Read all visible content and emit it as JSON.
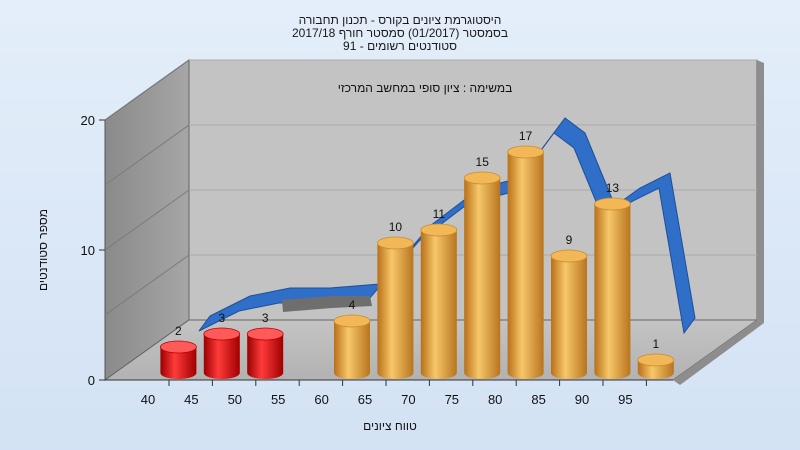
{
  "chart_data": {
    "type": "bar",
    "title_lines": [
      "היסטוגרמת ציונים בקורס - תכנון תחבורה",
      "בסמסטר (01/2017) סמסטר חורף 2017/18",
      "91 - סטודנטים רשומים"
    ],
    "subtitle": "במשימה : ציון סופי במחשב המרכזי",
    "xlabel": "טווח ציונים",
    "ylabel": "מספר סטודנטים",
    "x_tick_labels": [
      "40",
      "45",
      "50",
      "55",
      "60",
      "65",
      "70",
      "75",
      "80",
      "85",
      "90",
      "95"
    ],
    "y_ticks": [
      "0",
      "10",
      "20"
    ],
    "ylim": [
      0,
      20
    ],
    "grid": true,
    "bars": [
      {
        "grade": 45,
        "value": 2,
        "label": "2",
        "color": "#e01010"
      },
      {
        "grade": 50,
        "value": 3,
        "label": "3",
        "color": "#e01010"
      },
      {
        "grade": 55,
        "value": 3,
        "label": "3",
        "color": "#e01010"
      },
      {
        "grade": 65,
        "value": 4,
        "label": "4",
        "color": "#e8a030"
      },
      {
        "grade": 70,
        "value": 10,
        "label": "10",
        "color": "#e8a030"
      },
      {
        "grade": 75,
        "value": 11,
        "label": "11",
        "color": "#e8a030"
      },
      {
        "grade": 80,
        "value": 15,
        "label": "15",
        "color": "#e8a030"
      },
      {
        "grade": 85,
        "value": 17,
        "label": "17",
        "color": "#e8a030"
      },
      {
        "grade": 90,
        "value": 9,
        "label": "9",
        "color": "#e8a030"
      },
      {
        "grade": 95,
        "value": 13,
        "label": "13",
        "color": "#e8a030"
      },
      {
        "grade": 100,
        "value": 1,
        "label": "1",
        "color": "#e8a030"
      }
    ],
    "ribbon_color": "#2f6fc8",
    "ribbon_grey_color": "#6e6e6e",
    "fail_color": "#e01010",
    "pass_color": "#e8a030"
  }
}
